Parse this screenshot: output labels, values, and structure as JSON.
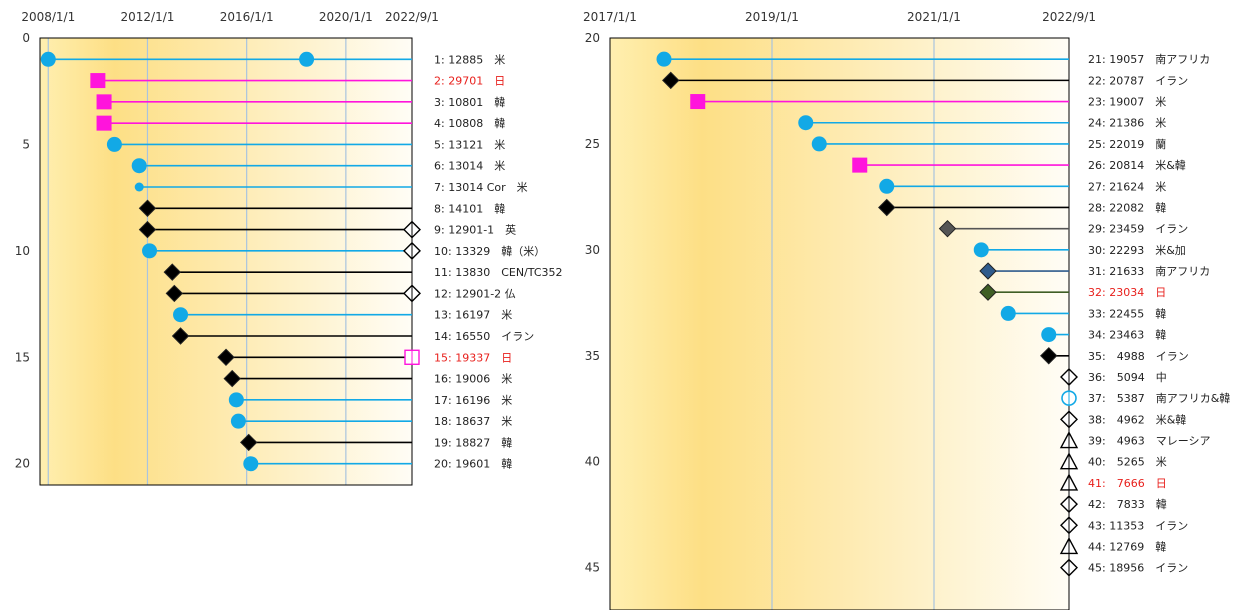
{
  "colors": {
    "blue": "#12a9e6",
    "magenta": "#ff14dc",
    "black": "#000000",
    "gray": "#555555",
    "navy": "#2f5b8c",
    "olive": "#3f5e25",
    "red_label": "#e8201c",
    "label": "#222222"
  },
  "chart_data": [
    {
      "type": "timeline",
      "x_tick_labels": [
        "2008/1/1",
        "2012/1/1",
        "2016/1/1",
        "2020/1/1",
        "2022/9/1"
      ],
      "y_tick_labels": [
        "0",
        "5",
        "10",
        "15",
        "20"
      ],
      "xlim": [
        "2007/9/1",
        "2022/9/1"
      ],
      "ylim": [
        0,
        21
      ],
      "rows": [
        {
          "y": 1,
          "label": "1: 12885　米",
          "red": false,
          "start": "2008/1/1",
          "end": "2022/9/1",
          "color": "blue",
          "marker": "circle",
          "extra": "2018/6/1"
        },
        {
          "y": 2,
          "label": "2: 29701　日",
          "red": true,
          "start": "2010/1/1",
          "end": "2022/9/1",
          "color": "magenta",
          "marker": "square"
        },
        {
          "y": 3,
          "label": "3: 10801　韓",
          "red": false,
          "start": "2010/4/1",
          "end": "2022/9/1",
          "color": "magenta",
          "marker": "square"
        },
        {
          "y": 4,
          "label": "4: 10808　韓",
          "red": false,
          "start": "2010/4/1",
          "end": "2022/9/1",
          "color": "magenta",
          "marker": "square"
        },
        {
          "y": 5,
          "label": "5: 13121　米",
          "red": false,
          "start": "2010/9/1",
          "end": "2022/9/1",
          "color": "blue",
          "marker": "circle"
        },
        {
          "y": 6,
          "label": "6: 13014　米",
          "red": false,
          "start": "2011/9/1",
          "end": "2022/9/1",
          "color": "blue",
          "marker": "circle"
        },
        {
          "y": 7,
          "label": "7: 13014 Cor　米",
          "red": false,
          "start": "2011/9/1",
          "end": "2022/9/1",
          "color": "blue",
          "marker": "small-circle"
        },
        {
          "y": 8,
          "label": "8: 14101　韓",
          "red": false,
          "start": "2012/1/1",
          "end": "2022/9/1",
          "color": "black",
          "marker": "diamond"
        },
        {
          "y": 9,
          "label": "9: 12901-1　英",
          "red": false,
          "start": "2012/1/1",
          "end": "2022/9/1",
          "color": "black",
          "marker": "diamond",
          "end_marker": "open-diamond"
        },
        {
          "y": 10,
          "label": "10: 13329　韓（米）",
          "red": false,
          "start": "2012/2/1",
          "end": "2022/9/1",
          "color": "blue",
          "marker": "circle",
          "end_marker": "open-diamond"
        },
        {
          "y": 11,
          "label": "11: 13830　CEN/TC352",
          "red": false,
          "start": "2013/1/1",
          "end": "2022/9/1",
          "color": "black",
          "marker": "diamond"
        },
        {
          "y": 12,
          "label": "12: 12901-2 仏",
          "red": false,
          "start": "2013/2/1",
          "end": "2022/9/1",
          "color": "black",
          "marker": "diamond",
          "end_marker": "open-diamond"
        },
        {
          "y": 13,
          "label": "13: 16197　米",
          "red": false,
          "start": "2013/5/1",
          "end": "2022/9/1",
          "color": "blue",
          "marker": "circle"
        },
        {
          "y": 14,
          "label": "14: 16550　イラン",
          "red": false,
          "start": "2013/5/1",
          "end": "2022/9/1",
          "color": "black",
          "marker": "diamond"
        },
        {
          "y": 15,
          "label": "15: 19337　日",
          "red": true,
          "start": "2015/3/1",
          "end": "2022/9/1",
          "color": "black",
          "marker": "diamond",
          "end_marker": "open-square"
        },
        {
          "y": 16,
          "label": "16: 19006　米",
          "red": false,
          "start": "2015/6/1",
          "end": "2022/9/1",
          "color": "black",
          "marker": "diamond"
        },
        {
          "y": 17,
          "label": "17: 16196　米",
          "red": false,
          "start": "2015/8/1",
          "end": "2022/9/1",
          "color": "blue",
          "marker": "circle"
        },
        {
          "y": 18,
          "label": "18: 18637　米",
          "red": false,
          "start": "2015/9/1",
          "end": "2022/9/1",
          "color": "blue",
          "marker": "circle"
        },
        {
          "y": 19,
          "label": "19: 18827　韓",
          "red": false,
          "start": "2016/2/1",
          "end": "2022/9/1",
          "color": "black",
          "marker": "diamond"
        },
        {
          "y": 20,
          "label": "20: 19601　韓",
          "red": false,
          "start": "2016/3/1",
          "end": "2022/9/1",
          "color": "blue",
          "marker": "circle"
        }
      ]
    },
    {
      "type": "timeline",
      "x_tick_labels": [
        "2017/1/1",
        "2019/1/1",
        "2021/1/1",
        "2022/9/1"
      ],
      "y_tick_labels": [
        "20",
        "25",
        "30",
        "35",
        "40",
        "45"
      ],
      "xlim": [
        "2017/1/1",
        "2022/9/1"
      ],
      "ylim": [
        20,
        47
      ],
      "rows": [
        {
          "y": 21,
          "label": "21: 19057　南アフリカ",
          "red": false,
          "start": "2017/9/1",
          "end": "2022/9/1",
          "color": "blue",
          "marker": "circle"
        },
        {
          "y": 22,
          "label": "22: 20787　イラン",
          "red": false,
          "start": "2017/10/1",
          "end": "2022/9/1",
          "color": "black",
          "marker": "diamond"
        },
        {
          "y": 23,
          "label": "23: 19007　米",
          "red": false,
          "start": "2018/2/1",
          "end": "2022/9/1",
          "color": "magenta",
          "marker": "square"
        },
        {
          "y": 24,
          "label": "24: 21386　米",
          "red": false,
          "start": "2019/6/1",
          "end": "2022/9/1",
          "color": "blue",
          "marker": "circle"
        },
        {
          "y": 25,
          "label": "25: 22019　蘭",
          "red": false,
          "start": "2019/8/1",
          "end": "2022/9/1",
          "color": "blue",
          "marker": "circle"
        },
        {
          "y": 26,
          "label": "26: 20814　米&韓",
          "red": false,
          "start": "2020/2/1",
          "end": "2022/9/1",
          "color": "magenta",
          "marker": "square"
        },
        {
          "y": 27,
          "label": "27: 21624　米",
          "red": false,
          "start": "2020/6/1",
          "end": "2022/9/1",
          "color": "blue",
          "marker": "circle"
        },
        {
          "y": 28,
          "label": "28: 22082　韓",
          "red": false,
          "start": "2020/6/1",
          "end": "2022/9/1",
          "color": "black",
          "marker": "diamond"
        },
        {
          "y": 29,
          "label": "29: 23459　イラン",
          "red": false,
          "start": "2021/3/1",
          "end": "2022/9/1",
          "color": "gray",
          "marker": "diamond"
        },
        {
          "y": 30,
          "label": "30: 22293　米&加",
          "red": false,
          "start": "2021/8/1",
          "end": "2022/9/1",
          "color": "blue",
          "marker": "circle"
        },
        {
          "y": 31,
          "label": "31: 21633　南アフリカ",
          "red": false,
          "start": "2021/9/1",
          "end": "2022/9/1",
          "color": "navy",
          "marker": "diamond"
        },
        {
          "y": 32,
          "label": "32: 23034　日",
          "red": true,
          "start": "2021/9/1",
          "end": "2022/9/1",
          "color": "olive",
          "marker": "diamond"
        },
        {
          "y": 33,
          "label": "33: 22455　韓",
          "red": false,
          "start": "2021/12/1",
          "end": "2022/9/1",
          "color": "blue",
          "marker": "circle"
        },
        {
          "y": 34,
          "label": "34: 23463　韓",
          "red": false,
          "start": "2022/6/1",
          "end": "2022/9/1",
          "color": "blue",
          "marker": "circle"
        },
        {
          "y": 35,
          "label": "35:　4988　イラン",
          "red": false,
          "start": "2022/6/1",
          "end": "2022/9/1",
          "color": "black",
          "marker": "diamond"
        },
        {
          "y": 36,
          "label": "36:　5094　中",
          "red": false,
          "start": "2022/9/1",
          "end": "2022/9/1",
          "color": "black",
          "marker": "open-diamond"
        },
        {
          "y": 37,
          "label": "37:　5387　南アフリカ&韓",
          "red": false,
          "start": "2022/9/1",
          "end": "2022/9/1",
          "color": "blue",
          "marker": "open-circle"
        },
        {
          "y": 38,
          "label": "38:　4962　米&韓",
          "red": false,
          "start": "2022/9/1",
          "end": "2022/9/1",
          "color": "black",
          "marker": "open-diamond"
        },
        {
          "y": 39,
          "label": "39:　4963　マレーシア",
          "red": false,
          "start": "2022/9/1",
          "end": "2022/9/1",
          "color": "black",
          "marker": "open-triangle"
        },
        {
          "y": 40,
          "label": "40:　5265　米",
          "red": false,
          "start": "2022/9/1",
          "end": "2022/9/1",
          "color": "black",
          "marker": "open-triangle"
        },
        {
          "y": 41,
          "label": "41:　7666　日",
          "red": true,
          "start": "2022/9/1",
          "end": "2022/9/1",
          "color": "black",
          "marker": "open-triangle"
        },
        {
          "y": 42,
          "label": "42:　7833　韓",
          "red": false,
          "start": "2022/9/1",
          "end": "2022/9/1",
          "color": "black",
          "marker": "open-diamond"
        },
        {
          "y": 43,
          "label": "43: 11353　イラン",
          "red": false,
          "start": "2022/9/1",
          "end": "2022/9/1",
          "color": "black",
          "marker": "open-diamond"
        },
        {
          "y": 44,
          "label": "44: 12769　韓",
          "red": false,
          "start": "2022/9/1",
          "end": "2022/9/1",
          "color": "black",
          "marker": "open-triangle"
        },
        {
          "y": 45,
          "label": "45: 18956　イラン",
          "red": false,
          "start": "2022/9/1",
          "end": "2022/9/1",
          "color": "black",
          "marker": "open-diamond"
        }
      ]
    }
  ]
}
